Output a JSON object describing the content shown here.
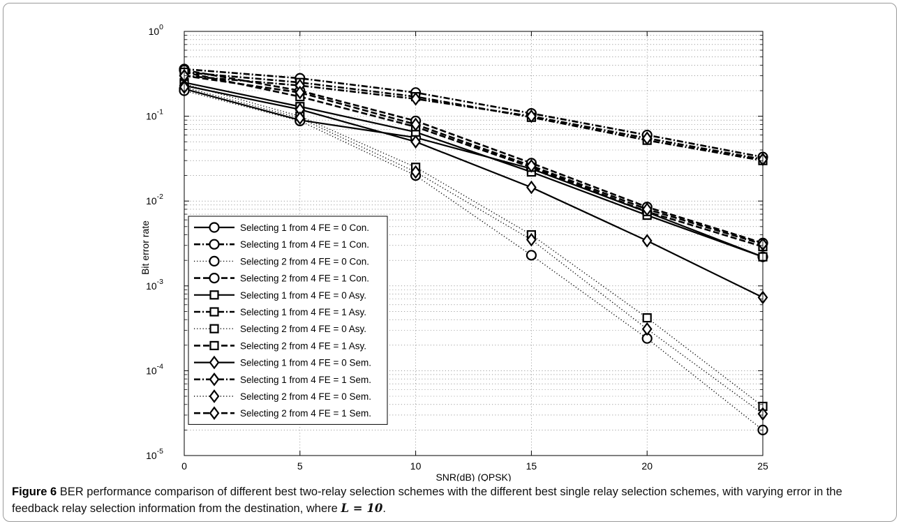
{
  "figure": {
    "label": "Figure 6",
    "caption_text": "BER performance comparison of different best two-relay selection schemes with the different best single relay selection schemes, with varying error in the feedback relay selection information from the destination, where",
    "caption_equation": "L = 10",
    "caption_end": "."
  },
  "chart_data": {
    "type": "line",
    "title": "",
    "xlabel": "SNR(dB) (QPSK)",
    "ylabel": "Bit error rate",
    "x": [
      0,
      5,
      10,
      15,
      20,
      25
    ],
    "xlim": [
      0,
      25
    ],
    "ylim": [
      1e-05,
      1
    ],
    "yscale": "log",
    "grid": true,
    "legend_position": "bottom-left",
    "x_ticks": [
      "0",
      "5",
      "10",
      "15",
      "20",
      "25"
    ],
    "y_ticks": [
      {
        "base": "10",
        "exp": "-5",
        "value": 1e-05
      },
      {
        "base": "10",
        "exp": "-4",
        "value": 0.0001
      },
      {
        "base": "10",
        "exp": "-3",
        "value": 0.001
      },
      {
        "base": "10",
        "exp": "-2",
        "value": 0.01
      },
      {
        "base": "10",
        "exp": "-1",
        "value": 0.1
      },
      {
        "base": "10",
        "exp": "0",
        "value": 1
      }
    ],
    "series": [
      {
        "name": "Selecting 1 from 4 FE = 0 Con.",
        "style": "solid",
        "marker": "circle",
        "values": [
          0.21,
          0.09,
          0.056,
          0.024,
          0.0074,
          0.0022
        ]
      },
      {
        "name": "Selecting 1 from 4 FE = 1 Con.",
        "style": "dashdot",
        "marker": "circle",
        "values": [
          0.36,
          0.28,
          0.19,
          0.108,
          0.06,
          0.033
        ]
      },
      {
        "name": "Selecting 2 from 4 FE = 0 Con.",
        "style": "dotted",
        "marker": "circle",
        "values": [
          0.2,
          0.088,
          0.02,
          0.0023,
          0.00024,
          2e-05
        ]
      },
      {
        "name": "Selecting 2 from 4 FE = 1 Con.",
        "style": "dashed",
        "marker": "circle",
        "values": [
          0.35,
          0.2,
          0.088,
          0.028,
          0.0085,
          0.0032
        ]
      },
      {
        "name": "Selecting 1 from 4 FE = 0 Asy.",
        "style": "solid",
        "marker": "square",
        "values": [
          0.25,
          0.13,
          0.065,
          0.022,
          0.0068,
          0.0022
        ]
      },
      {
        "name": "Selecting 1 from 4 FE = 1 Asy.",
        "style": "dashdot",
        "marker": "square",
        "values": [
          0.33,
          0.25,
          0.17,
          0.097,
          0.052,
          0.03
        ]
      },
      {
        "name": "Selecting 2 from 4 FE = 0 Asy.",
        "style": "dotted",
        "marker": "square",
        "values": [
          0.24,
          0.1,
          0.025,
          0.004,
          0.00042,
          3.8e-05
        ]
      },
      {
        "name": "Selecting 2 from 4 FE = 1 Asy.",
        "style": "dashed",
        "marker": "square",
        "values": [
          0.33,
          0.17,
          0.075,
          0.025,
          0.0075,
          0.0029
        ]
      },
      {
        "name": "Selecting 1 from 4 FE = 0 Sem.",
        "style": "solid",
        "marker": "diamond",
        "values": [
          0.23,
          0.12,
          0.05,
          0.0145,
          0.0034,
          0.00073
        ]
      },
      {
        "name": "Selecting 1 from 4 FE = 1 Sem.",
        "style": "dashdot",
        "marker": "diamond",
        "values": [
          0.3,
          0.23,
          0.16,
          0.1,
          0.055,
          0.031
        ]
      },
      {
        "name": "Selecting 2 from 4 FE = 0 Sem.",
        "style": "dotted",
        "marker": "diamond",
        "values": [
          0.22,
          0.095,
          0.022,
          0.0035,
          0.00031,
          3.1e-05
        ]
      },
      {
        "name": "Selecting 2 from 4 FE = 1 Sem.",
        "style": "dashed",
        "marker": "diamond",
        "values": [
          0.3,
          0.19,
          0.08,
          0.026,
          0.008,
          0.0031
        ]
      }
    ]
  }
}
